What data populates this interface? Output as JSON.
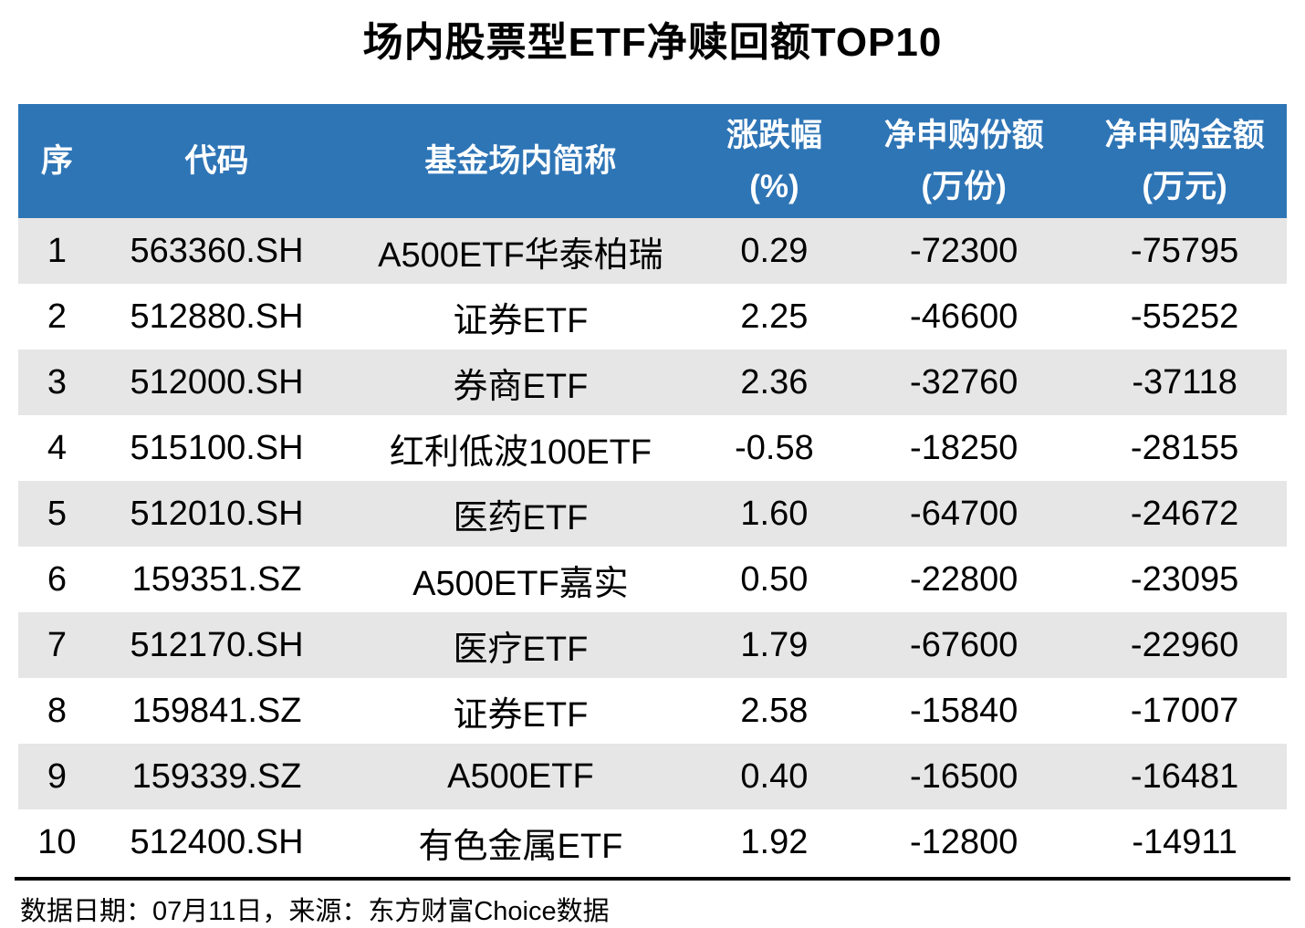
{
  "chart_data": {
    "type": "table",
    "title": "场内股票型ETF净赎回额TOP10",
    "headers": [
      {
        "line1": "序",
        "line2": ""
      },
      {
        "line1": "代码",
        "line2": ""
      },
      {
        "line1": "基金场内简称",
        "line2": ""
      },
      {
        "line1": "涨跌幅",
        "line2": "(%)"
      },
      {
        "line1": "净申购份额",
        "line2": "(万份)"
      },
      {
        "line1": "净申购金额",
        "line2": "(万元)"
      }
    ],
    "rows": [
      [
        "1",
        "563360.SH",
        "A500ETF华泰柏瑞",
        "0.29",
        "-72300",
        "-75795"
      ],
      [
        "2",
        "512880.SH",
        "证券ETF",
        "2.25",
        "-46600",
        "-55252"
      ],
      [
        "3",
        "512000.SH",
        "券商ETF",
        "2.36",
        "-32760",
        "-37118"
      ],
      [
        "4",
        "515100.SH",
        "红利低波100ETF",
        "-0.58",
        "-18250",
        "-28155"
      ],
      [
        "5",
        "512010.SH",
        "医药ETF",
        "1.60",
        "-64700",
        "-24672"
      ],
      [
        "6",
        "159351.SZ",
        "A500ETF嘉实",
        "0.50",
        "-22800",
        "-23095"
      ],
      [
        "7",
        "512170.SH",
        "医疗ETF",
        "1.79",
        "-67600",
        "-22960"
      ],
      [
        "8",
        "159841.SZ",
        "证券ETF",
        "2.58",
        "-15840",
        "-17007"
      ],
      [
        "9",
        "159339.SZ",
        "A500ETF",
        "0.40",
        "-16500",
        "-16481"
      ],
      [
        "10",
        "512400.SH",
        "有色金属ETF",
        "1.92",
        "-12800",
        "-14911"
      ]
    ]
  },
  "footer": {
    "text": "数据日期：07月11日，来源：东方财富Choice数据"
  },
  "colors": {
    "header_bg": "#2E75B6",
    "header_text": "#FFFFFF",
    "stripe_bg": "#E7E6E6",
    "body_text": "#000000",
    "title_color": "#000000",
    "rule_color": "#000000"
  }
}
